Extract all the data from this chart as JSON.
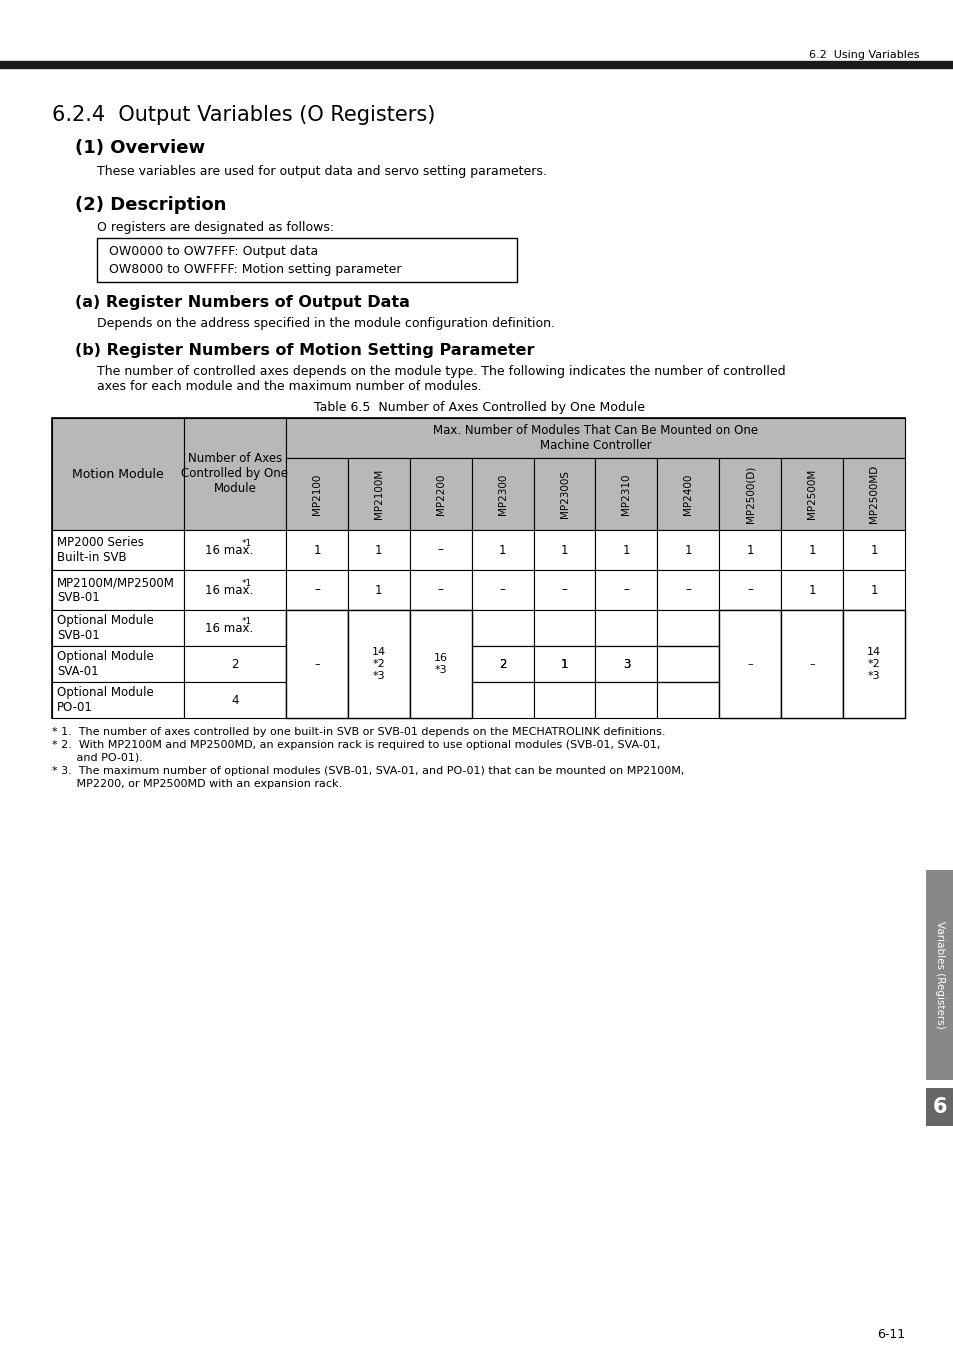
{
  "page_header_right": "6.2  Using Variables",
  "section_title": "6.2.4  Output Variables (O Registers)",
  "sub1_title": "(1) Overview",
  "sub1_text": "These variables are used for output data and servo setting parameters.",
  "sub2_title": "(2) Description",
  "sub2_text": "O registers are designated as follows:",
  "box_lines": [
    "OW0000 to OW7FFF: Output data",
    "OW8000 to OWFFFF: Motion setting parameter"
  ],
  "sub2a_title": "(a) Register Numbers of Output Data",
  "sub2a_text": "Depends on the address specified in the module configuration definition.",
  "sub2b_title": "(b) Register Numbers of Motion Setting Parameter",
  "sub2b_text1": "The number of controlled axes depends on the module type. The following indicates the number of controlled",
  "sub2b_text2": "axes for each module and the maximum number of modules.",
  "table_caption": "Table 6.5  Number of Axes Controlled by One Module",
  "table_header_top": "Max. Number of Modules That Can Be Mounted on One\nMachine Controller",
  "table_col1_header": "Motion Module",
  "table_col2_header": "Number of Axes\nControlled by One\nModule",
  "table_col_headers": [
    "MP2100",
    "MP2100M",
    "MP2200",
    "MP2300",
    "MP2300S",
    "MP2310",
    "MP2400",
    "MP2500(D)",
    "MP2500M",
    "MP2500MD"
  ],
  "table_rows": [
    {
      "module": "MP2000 Series\nBuilt-in SVB",
      "axes": "16 max.",
      "axes_sup": "*1",
      "values": [
        "1",
        "1",
        "–",
        "1",
        "1",
        "1",
        "1",
        "1",
        "1",
        "1"
      ]
    },
    {
      "module": "MP2100M/MP2500M\nSVB-01",
      "axes": "16 max.",
      "axes_sup": "*1",
      "values": [
        "–",
        "1",
        "–",
        "–",
        "–",
        "–",
        "–",
        "–",
        "1",
        "1"
      ]
    },
    {
      "module": "Optional Module\nSVB-01",
      "axes": "16 max.",
      "axes_sup": "*1",
      "values": [
        "",
        "",
        "",
        "",
        "",
        "",
        "",
        "",
        "",
        ""
      ]
    },
    {
      "module": "Optional Module\nSVA-01",
      "axes": "2",
      "axes_sup": "",
      "values": [
        "",
        "",
        "",
        "2",
        "1",
        "3",
        "",
        "",
        "",
        ""
      ]
    },
    {
      "module": "Optional Module\nPO-01",
      "axes": "4",
      "axes_sup": "",
      "values": [
        "",
        "",
        "",
        "",
        "",
        "",
        "",
        "",
        "",
        ""
      ]
    }
  ],
  "optional_merged": {
    "col0": "–",
    "col1": "14\n*2\n*3",
    "col2": "16\n*3",
    "col7": "–",
    "col8": "–",
    "col9": "14\n*2\n*3"
  },
  "footnotes": [
    "* 1.  The number of axes controlled by one built-in SVB or SVB-01 depends on the MECHATROLINK definitions.",
    "* 2.  With MP2100M and MP2500MD, an expansion rack is required to use optional modules (SVB-01, SVA-01,",
    "       and PO-01).",
    "* 3.  The maximum number of optional modules (SVB-01, SVA-01, and PO-01) that can be mounted on MP2100M,",
    "       MP2200, or MP2500MD with an expansion rack."
  ],
  "side_label": "Variables (Registers)",
  "side_num": "6",
  "page_num": "6-11",
  "bg_color": "#ffffff",
  "header_bar_color": "#1a1a1a",
  "table_header_bg": "#b8b8b8",
  "table_bg": "#ffffff",
  "table_border": "#000000",
  "side_tab_color": "#808080"
}
